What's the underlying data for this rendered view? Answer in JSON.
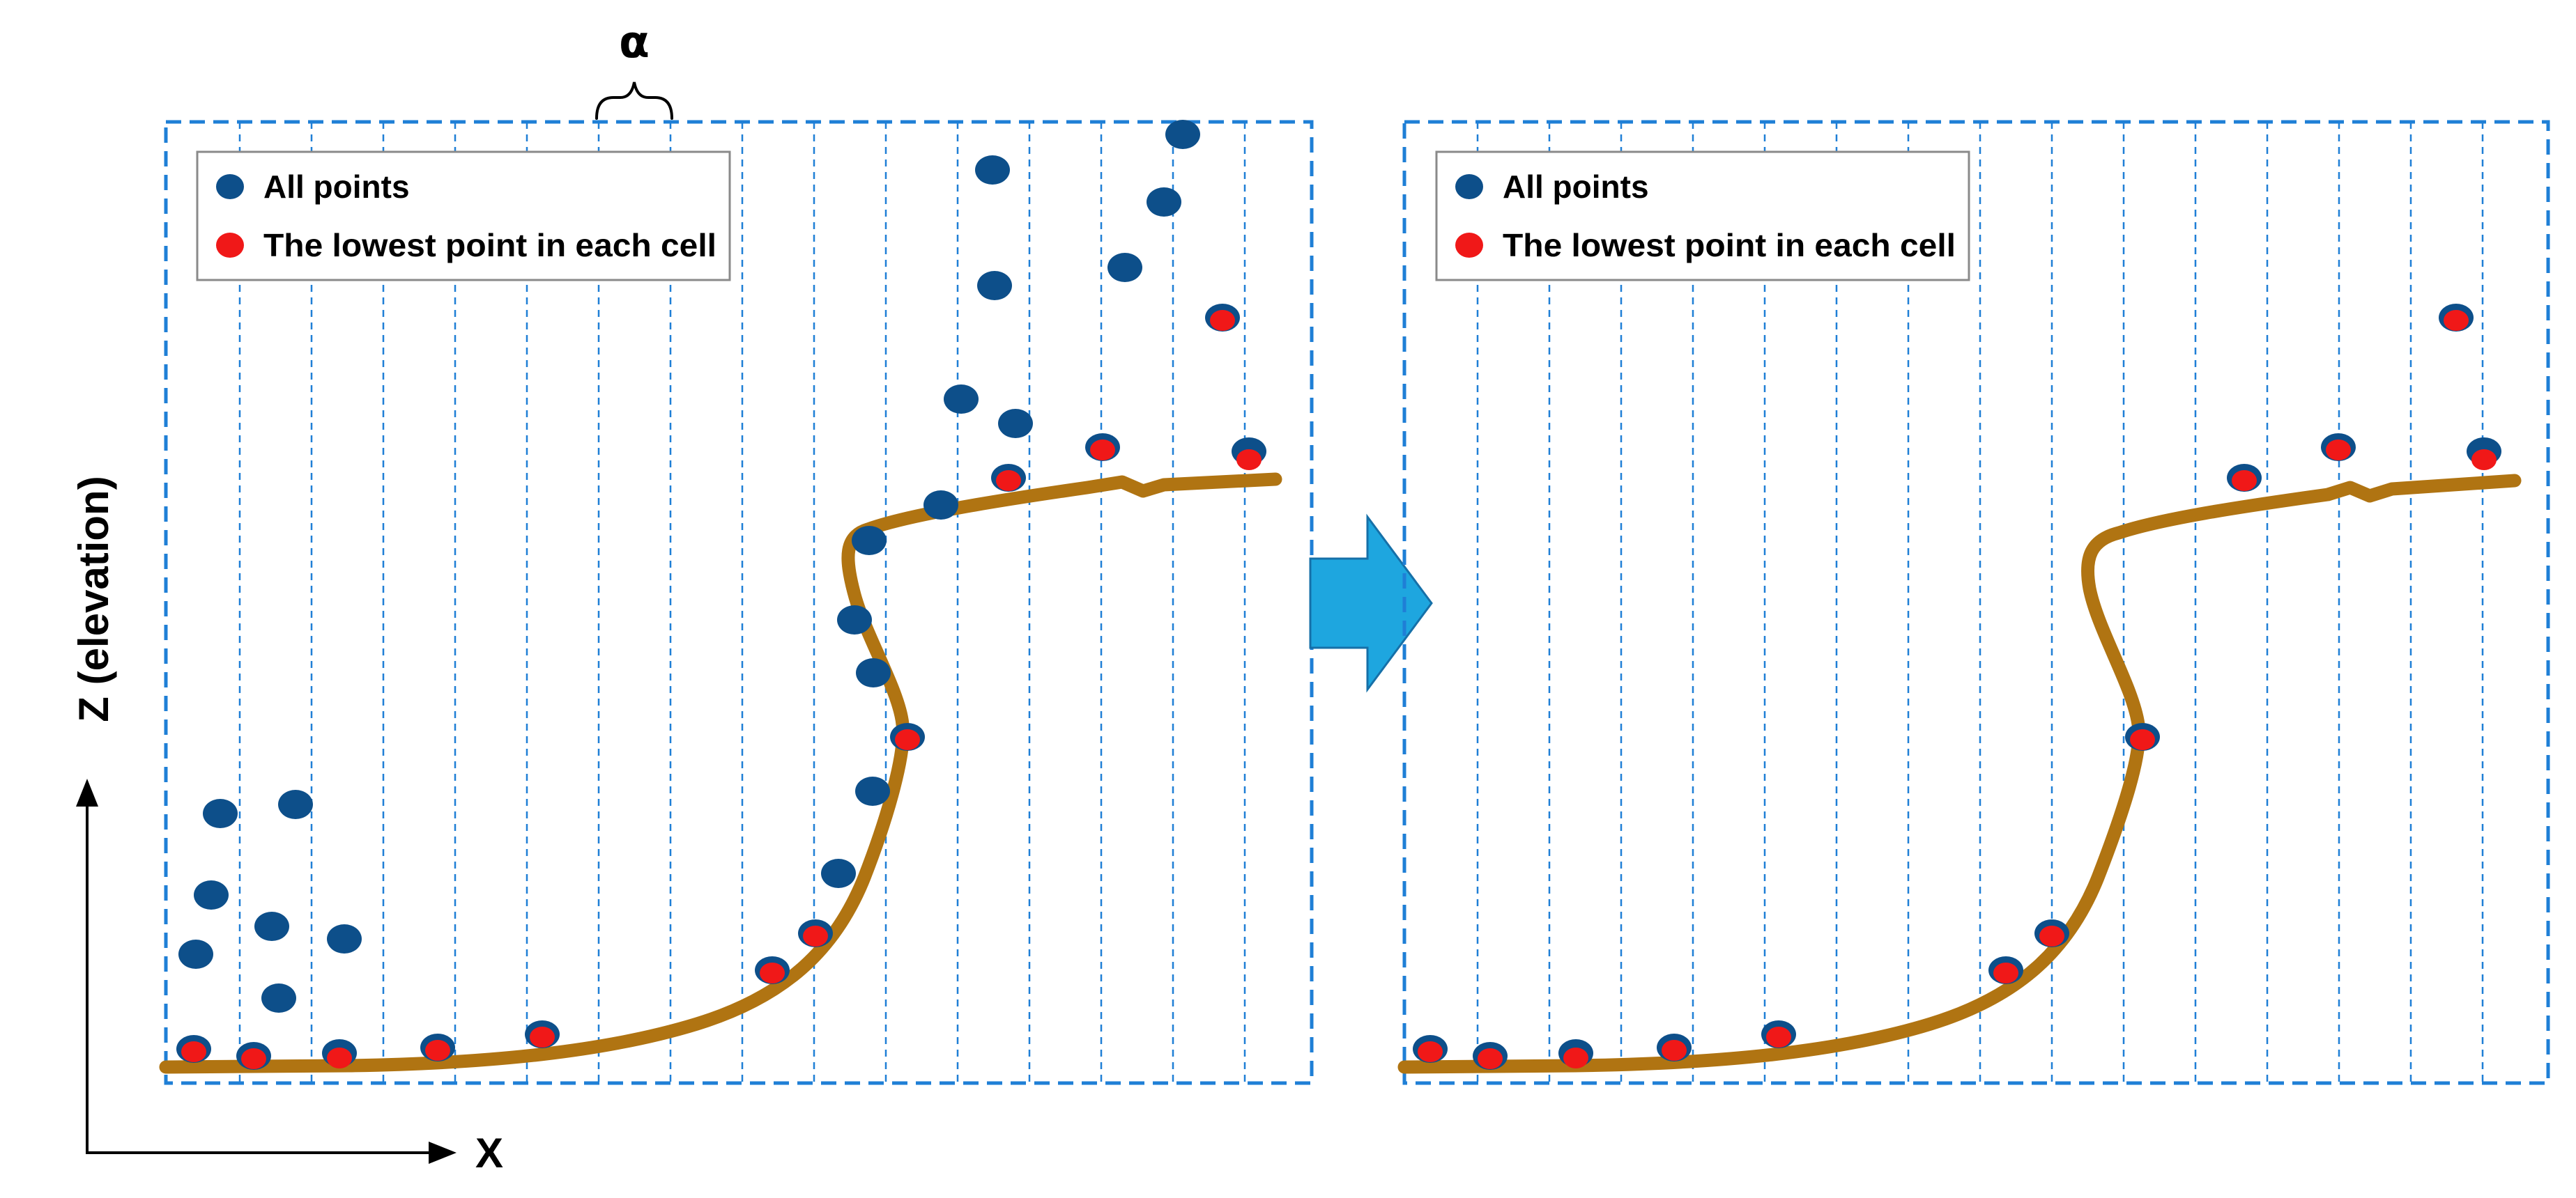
{
  "diagram": {
    "alpha_label": "α",
    "legend": {
      "all_points": "All points",
      "lowest_point": "The lowest point in each cell"
    },
    "axis": {
      "x_label": "X",
      "z_label": "Z (elevation)"
    },
    "colors": {
      "all_points": "#0d4f8a",
      "lowest_point": "#f01818",
      "terrain": "#b07412",
      "grid": "#1f7fd6",
      "arrow": "#1ea6df"
    },
    "flow_icon": "right-arrow-icon"
  }
}
